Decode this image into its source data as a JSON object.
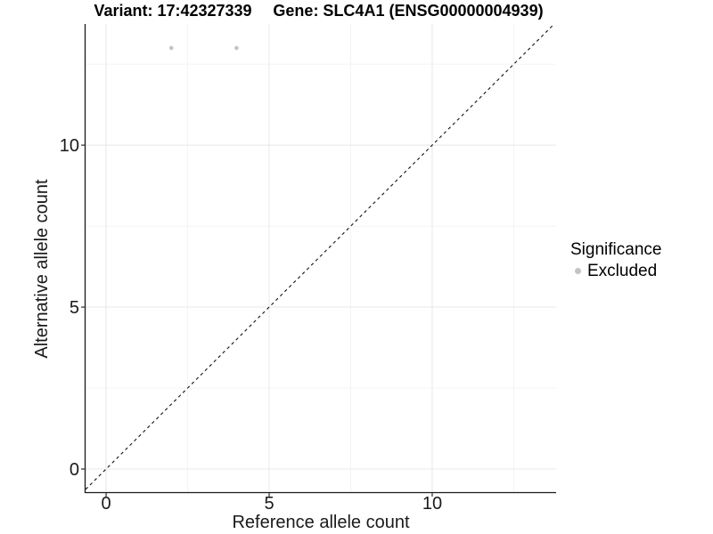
{
  "figure": {
    "title_left": "Variant: 17:42327339",
    "title_right": "Gene: SLC4A1 (ENSG00000004939)"
  },
  "chart_data": {
    "type": "scatter",
    "title": "Variant: 17:42327339 / Gene: SLC4A1 (ENSG00000004939)",
    "xlabel": "Reference allele count",
    "ylabel": "Alternative allele count",
    "xlim": [
      -0.63,
      13.8
    ],
    "ylim": [
      -0.715,
      13.74
    ],
    "x_major_ticks": [
      0,
      5,
      10
    ],
    "y_major_ticks": [
      0,
      5,
      10
    ],
    "x_minor_ticks": [
      2.5,
      7.5,
      12.5
    ],
    "y_minor_ticks": [
      2.5,
      7.5,
      12.5
    ],
    "grid": "major and minor, light gray on white",
    "series": [
      {
        "name": "Excluded",
        "points": [
          {
            "x": 2,
            "y": 13
          },
          {
            "x": 4,
            "y": 13
          }
        ]
      }
    ],
    "reference_line": {
      "type": "identity y=x",
      "style": "dashed",
      "color": "#111111"
    },
    "legend": {
      "title": "Significance",
      "position": "right",
      "items": [
        {
          "label": "Excluded",
          "color": "#c3c3c3"
        }
      ]
    },
    "colors": {
      "point": "#c3c3c3",
      "grid_major": "#e8e8e8",
      "grid_minor": "#f4f4f4",
      "axis_line": "#1a1a1a",
      "tick_text": "#1a1a1a"
    }
  }
}
